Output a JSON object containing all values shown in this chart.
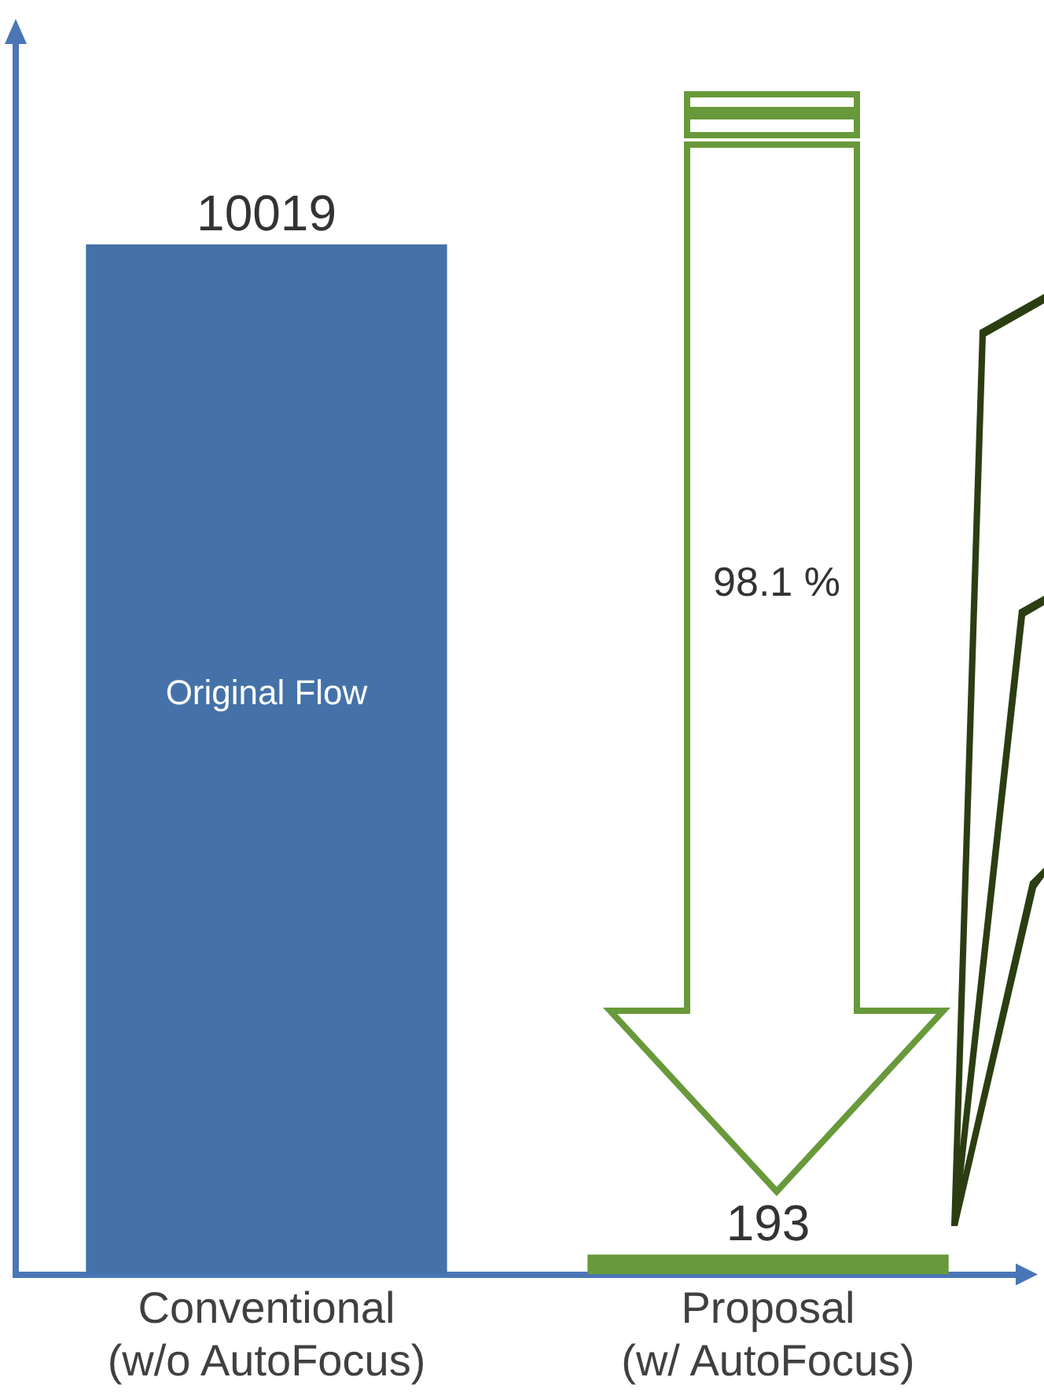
{
  "chart_data": {
    "type": "bar",
    "categories": [
      "Conventional\n(w/o AutoFocus)",
      "Proposal\n(w/ AutoFocus)"
    ],
    "values": [
      10019,
      193
    ],
    "colors": [
      "#4472a8",
      "#68993a"
    ],
    "data_labels": true,
    "legend": false,
    "grid": false,
    "annotations": [
      "Original Flow",
      "98.1 %"
    ]
  }
}
